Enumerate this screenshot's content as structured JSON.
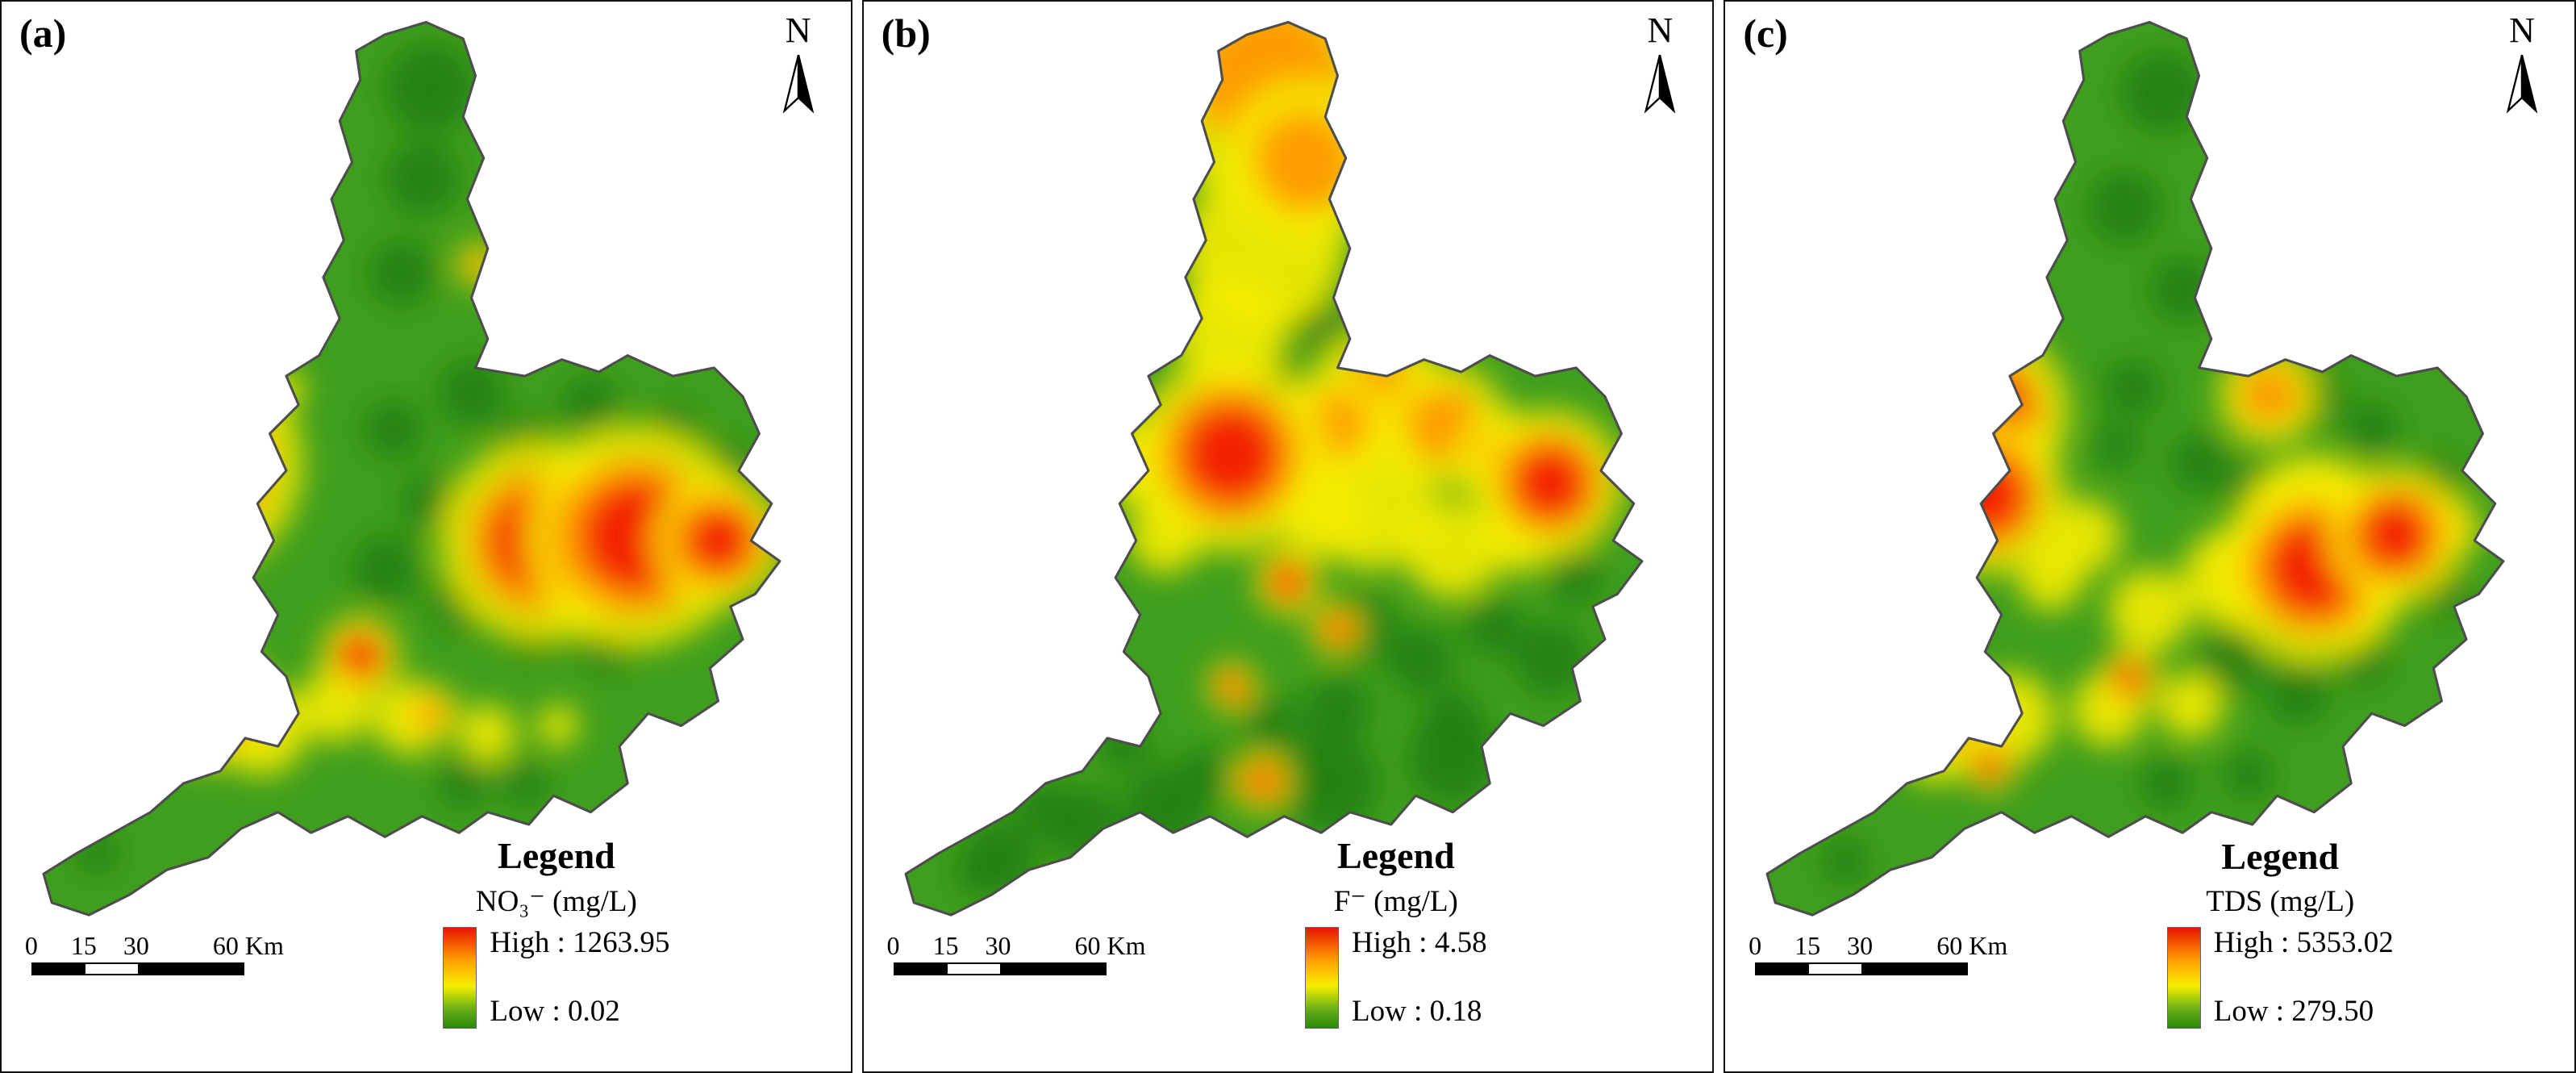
{
  "figure": {
    "palette": {
      "base_green": "#3f9e1d",
      "dark_green": "#1e7c10",
      "yellow": "#f6ec00",
      "orange": "#ff9800",
      "red": "#f32000",
      "outline": "#4d4d4d"
    },
    "panels": [
      {
        "label": "(a)",
        "north_label": "N",
        "legend": {
          "title": "Legend",
          "parameter": "NO₃⁻ (mg/L)",
          "high": "High : 1263.95",
          "low": "Low : 0.02"
        },
        "scalebar": {
          "ticks": [
            "0",
            "15",
            "30",
            "60 Km"
          ]
        },
        "spots": {
          "red": [
            [
              210,
              560,
              70
            ],
            [
              640,
              655,
              62
            ],
            [
              755,
              650,
              68
            ],
            [
              855,
              655,
              40
            ],
            [
              235,
              855,
              38
            ],
            [
              150,
              888,
              20
            ],
            [
              420,
              795,
              24
            ]
          ],
          "orange": [
            [
              565,
              320,
              16
            ],
            [
              505,
              865,
              20
            ]
          ],
          "yellow": [
            [
              300,
              885,
              55
            ],
            [
              390,
              855,
              45
            ],
            [
              480,
              870,
              45
            ],
            [
              575,
              890,
              35
            ],
            [
              660,
              880,
              25
            ],
            [
              330,
              470,
              22
            ]
          ],
          "dark": [
            [
              505,
              105,
              55
            ],
            [
              495,
              215,
              45
            ],
            [
              470,
              330,
              40
            ],
            [
              555,
              475,
              40
            ],
            [
              460,
              520,
              35
            ],
            [
              620,
              540,
              38
            ],
            [
              700,
              490,
              35
            ],
            [
              800,
              520,
              32
            ],
            [
              865,
              560,
              28
            ],
            [
              505,
              610,
              35
            ],
            [
              585,
              615,
              30
            ],
            [
              450,
              690,
              40
            ],
            [
              540,
              730,
              35
            ],
            [
              630,
              760,
              40
            ],
            [
              720,
              780,
              35
            ],
            [
              800,
              740,
              30
            ],
            [
              545,
              950,
              30
            ],
            [
              620,
              950,
              28
            ],
            [
              100,
              1035,
              25
            ],
            [
              680,
              590,
              25
            ]
          ]
        }
      },
      {
        "label": "(b)",
        "north_label": "N",
        "legend": {
          "title": "Legend",
          "parameter": "F⁻ (mg/L)",
          "high": "High : 4.58",
          "low": "Low : 0.18"
        },
        "scalebar": {
          "ticks": [
            "0",
            "15",
            "30",
            "60 Km"
          ]
        },
        "spots": {
          "red": [
            [
              430,
              550,
              60
            ],
            [
              818,
              585,
              45
            ],
            [
              500,
              705,
              20
            ],
            [
              558,
              762,
              16
            ],
            [
              432,
              832,
              15
            ],
            [
              468,
              948,
              18
            ]
          ],
          "orange": [
            [
              478,
              95,
              90
            ],
            [
              520,
              195,
              60
            ],
            [
              610,
              480,
              50
            ],
            [
              690,
              515,
              45
            ],
            [
              555,
              515,
              40
            ],
            [
              760,
              555,
              35
            ]
          ],
          "yellow": [
            [
              470,
              300,
              100
            ],
            [
              430,
              400,
              70
            ],
            [
              320,
              560,
              55
            ],
            [
              600,
              610,
              80
            ],
            [
              700,
              665,
              60
            ],
            [
              540,
              620,
              55
            ],
            [
              780,
              650,
              45
            ],
            [
              350,
              650,
              45
            ]
          ],
          "dark": [
            [
              536,
              388,
              30
            ],
            [
              486,
              455,
              26
            ],
            [
              575,
              435,
              22
            ],
            [
              590,
              760,
              40
            ],
            [
              660,
              800,
              40
            ],
            [
              560,
              860,
              40
            ],
            [
              480,
              880,
              35
            ],
            [
              700,
              870,
              35
            ],
            [
              750,
              760,
              35
            ],
            [
              850,
              700,
              32
            ],
            [
              400,
              940,
              32
            ],
            [
              300,
              900,
              32
            ],
            [
              200,
              980,
              30
            ],
            [
              120,
              1060,
              25
            ],
            [
              870,
              620,
              25
            ],
            [
              550,
              950,
              60
            ],
            [
              700,
              920,
              55
            ],
            [
              350,
              980,
              50
            ],
            [
              820,
              800,
              45
            ],
            [
              150,
              1040,
              45
            ],
            [
              250,
              1000,
              45
            ]
          ]
        }
      },
      {
        "label": "(c)",
        "north_label": "N",
        "legend": {
          "title": "Legend",
          "parameter": "TDS (mg/L)",
          "high": "High : 5353.02",
          "low": "Low : 279.50"
        },
        "scalebar": {
          "ticks": [
            "0",
            "15",
            "30",
            "60 Km"
          ]
        },
        "spots": {
          "red": [
            [
              298,
              498,
              52
            ],
            [
              302,
              600,
              48
            ],
            [
              700,
              688,
              58
            ],
            [
              798,
              648,
              42
            ],
            [
              250,
              878,
              20
            ],
            [
              306,
              928,
              16
            ],
            [
              476,
              822,
              18
            ]
          ],
          "orange": [
            [
              645,
              478,
              36
            ],
            [
              745,
              700,
              40
            ],
            [
              640,
              690,
              35
            ],
            [
              298,
              548,
              40
            ],
            [
              860,
              640,
              24
            ]
          ],
          "yellow": [
            [
              700,
              640,
              90
            ],
            [
              600,
              700,
              60
            ],
            [
              500,
              740,
              50
            ],
            [
              420,
              650,
              45
            ],
            [
              330,
              870,
              55
            ],
            [
              450,
              860,
              45
            ],
            [
              550,
              855,
              40
            ],
            [
              240,
              905,
              45
            ],
            [
              380,
              700,
              40
            ]
          ],
          "dark": [
            [
              515,
              110,
              50
            ],
            [
              470,
              250,
              45
            ],
            [
              540,
              350,
              40
            ],
            [
              480,
              470,
              35
            ],
            [
              560,
              560,
              35
            ],
            [
              620,
              590,
              30
            ],
            [
              700,
              480,
              35
            ],
            [
              770,
              520,
              32
            ],
            [
              850,
              580,
              30
            ],
            [
              600,
              800,
              40
            ],
            [
              680,
              840,
              38
            ],
            [
              760,
              800,
              32
            ],
            [
              520,
              950,
              32
            ],
            [
              620,
              940,
              30
            ],
            [
              130,
              1045,
              28
            ],
            [
              460,
              540,
              28
            ],
            [
              860,
              720,
              28
            ]
          ]
        }
      }
    ]
  }
}
